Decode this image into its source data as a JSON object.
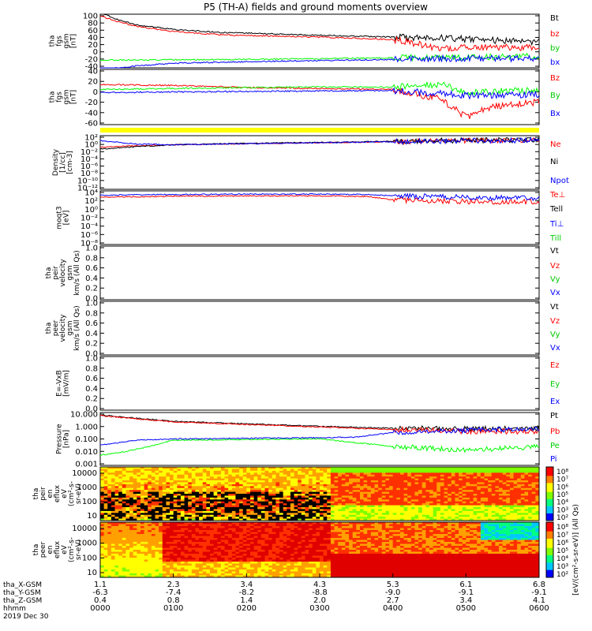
{
  "title": "P5 (TH-A) fields and ground moments overview",
  "colors": {
    "black": "#000000",
    "red": "#ff0000",
    "green": "#00ff00",
    "blue": "#0000ff",
    "yellow": "#ffff00"
  },
  "chart_data": [
    {
      "type": "line",
      "ylabel_lines": [
        "tha",
        "fgs",
        "gsm",
        "[nT]"
      ],
      "ylim": [
        -40,
        100
      ],
      "yticks": [
        "100",
        "80",
        "60",
        "40",
        "20",
        "0",
        "-20",
        "-40"
      ],
      "legend": [
        "Bt",
        "bz",
        "by",
        "bx"
      ],
      "series": [
        {
          "name": "Bt",
          "color": "#000000",
          "x": [
            0,
            5,
            15,
            30,
            60,
            100,
            180,
            240,
            280,
            320,
            360
          ],
          "values": [
            105,
            98,
            85,
            72,
            60,
            52,
            45,
            40,
            38,
            32,
            28
          ]
        },
        {
          "name": "bz",
          "color": "#ff0000",
          "x": [
            0,
            5,
            15,
            30,
            60,
            100,
            180,
            240,
            280,
            320,
            360
          ],
          "values": [
            95,
            90,
            80,
            68,
            55,
            46,
            40,
            34,
            10,
            14,
            12
          ]
        },
        {
          "name": "by",
          "color": "#00ff00",
          "x": [
            0,
            60,
            120,
            180,
            240,
            300,
            360
          ],
          "values": [
            -20,
            -19,
            -18,
            -16,
            -14,
            -12,
            -10
          ]
        },
        {
          "name": "bx",
          "color": "#0000ff",
          "x": [
            0,
            30,
            60,
            120,
            180,
            240,
            300,
            360
          ],
          "values": [
            -45,
            -35,
            -28,
            -24,
            -21,
            -18,
            -15,
            -16
          ]
        }
      ]
    },
    {
      "type": "line",
      "ylabel_lines": [
        "tha",
        "fgs",
        "gsm",
        "[nT]"
      ],
      "ylim": [
        -70,
        40
      ],
      "yticks": [
        "40",
        "20",
        "0",
        "-20",
        "-40",
        "-60"
      ],
      "legend": [
        "Bz",
        "By",
        "Bx"
      ],
      "series": [
        {
          "name": "Bz",
          "color": "#ff0000",
          "x": [
            0,
            60,
            120,
            180,
            240,
            280,
            300,
            320,
            360
          ],
          "values": [
            10,
            8,
            4,
            2,
            0,
            -20,
            -55,
            -35,
            -25
          ]
        },
        {
          "name": "By",
          "color": "#00ff00",
          "x": [
            0,
            60,
            120,
            180,
            240,
            280,
            300,
            360
          ],
          "values": [
            0,
            2,
            4,
            5,
            5,
            10,
            -5,
            -2
          ]
        },
        {
          "name": "Bx",
          "color": "#0000ff",
          "x": [
            0,
            60,
            120,
            180,
            240,
            280,
            300,
            360
          ],
          "values": [
            -6,
            -5,
            -4,
            -3,
            -2,
            -8,
            -12,
            -10
          ]
        }
      ]
    },
    {
      "type": "line",
      "log": true,
      "ylabel_lines": [
        "Density",
        "[1/cc]",
        "[cm-3]"
      ],
      "ylim": [
        -13,
        3
      ],
      "yticks": [
        "10²",
        "10⁰",
        "10⁻²",
        "10⁻⁴",
        "10⁻⁶",
        "10⁻⁸",
        "10⁻¹⁰",
        "10⁻¹²"
      ],
      "legend": [
        "Ne",
        "Ni",
        "Npot"
      ],
      "series": [
        {
          "name": "Ne",
          "color": "#ff0000",
          "x": [
            0,
            30,
            60,
            120,
            180,
            240,
            300,
            360
          ],
          "values": [
            -0.5,
            0,
            0.3,
            0.6,
            0.9,
            1.2,
            1.5,
            1.6
          ]
        },
        {
          "name": "Ni",
          "color": "#000000",
          "x": [
            0,
            30,
            60,
            120,
            180,
            240,
            300,
            360
          ],
          "values": [
            -1,
            -0.3,
            0.3,
            0.7,
            1,
            1.3,
            1.6,
            1.7
          ]
        },
        {
          "name": "Npot",
          "color": "#0000ff",
          "x": [
            0,
            30,
            60,
            120,
            180,
            240,
            300,
            360
          ],
          "values": [
            1.5,
            0.5,
            0.3,
            0.6,
            0.9,
            1.2,
            1.5,
            1.6
          ]
        }
      ]
    },
    {
      "type": "line",
      "log": true,
      "ylabel_lines": [
        "moqt3",
        "[eV]"
      ],
      "ylim": [
        -10,
        5
      ],
      "yticks": [
        "10⁴",
        "10²",
        "10⁰",
        "10⁻²",
        "10⁻⁴",
        "10⁻⁶",
        "10⁻⁸"
      ],
      "legend": [
        "Te⊥",
        "Tell",
        "Ti⊥",
        "Till"
      ],
      "series": [
        {
          "name": "Te⊥",
          "color": "#ff0000",
          "x": [
            0,
            60,
            120,
            180,
            220,
            240,
            280,
            320,
            360
          ],
          "values": [
            3.2,
            3.5,
            3.6,
            3.6,
            3.4,
            2.5,
            2.2,
            2.0,
            2.0
          ]
        },
        {
          "name": "Ti⊥",
          "color": "#0000ff",
          "x": [
            0,
            60,
            120,
            180,
            220,
            240,
            280,
            320,
            360
          ],
          "values": [
            3.8,
            4,
            4.1,
            4.1,
            4,
            3.6,
            3.3,
            3.1,
            3.0
          ]
        }
      ]
    },
    {
      "type": "line",
      "ylabel_lines": [
        "tha",
        "peir",
        "velocity",
        "gsm",
        "km/s (All Qs)"
      ],
      "ylim": [
        0,
        1
      ],
      "yticks": [
        "1.0",
        "0.8",
        "0.6",
        "0.4",
        "0.2",
        "0.0"
      ],
      "legend": [
        "Vt",
        "Vz",
        "Vy",
        "Vx"
      ],
      "series": []
    },
    {
      "type": "line",
      "ylabel_lines": [
        "tha",
        "peer",
        "velocity",
        "gsm",
        "km/s (All Qs)"
      ],
      "ylim": [
        0,
        1
      ],
      "yticks": [
        "1.0",
        "0.8",
        "0.6",
        "0.4",
        "0.2",
        "0.0"
      ],
      "legend": [
        "Vt",
        "Vz",
        "Vy",
        "Vx"
      ],
      "series": []
    },
    {
      "type": "line",
      "ylabel_lines": [
        "E=-VxB",
        "[mV/m]"
      ],
      "ylim": [
        0,
        1
      ],
      "yticks": [
        "1.0",
        "0.8",
        "0.6",
        "0.4",
        "0.2",
        "0.0"
      ],
      "legend": [
        "Ez",
        "Ey",
        "Ex"
      ],
      "series": []
    },
    {
      "type": "line",
      "log": true,
      "ylabel_lines": [
        "Pressure",
        "[nPa]"
      ],
      "ylim": [
        -3,
        1.2
      ],
      "yticks": [
        "10.000",
        "1.000",
        "0.100",
        "0.010",
        "0.001"
      ],
      "legend": [
        "Pt",
        "Pb",
        "Pe",
        "Pi"
      ],
      "series": [
        {
          "name": "Pt",
          "color": "#000000",
          "x": [
            0,
            30,
            60,
            120,
            180,
            240,
            300,
            360
          ],
          "values": [
            1,
            0.75,
            0.5,
            0.3,
            0.1,
            -0.05,
            -0.1,
            -0.1
          ]
        },
        {
          "name": "Pb",
          "color": "#ff0000",
          "x": [
            0,
            30,
            60,
            120,
            180,
            240,
            300,
            360
          ],
          "values": [
            0.95,
            0.7,
            0.45,
            0.25,
            0.05,
            -0.15,
            -0.3,
            -0.3
          ]
        },
        {
          "name": "Pe",
          "color": "#00ff00",
          "x": [
            0,
            20,
            40,
            60,
            120,
            180,
            210,
            240,
            300,
            360
          ],
          "values": [
            -2.2,
            -1.9,
            -1.5,
            -1,
            -0.95,
            -0.9,
            -1.2,
            -1.5,
            -1.8,
            -1.5
          ]
        },
        {
          "name": "Pi",
          "color": "#0000ff",
          "x": [
            0,
            30,
            60,
            120,
            180,
            210,
            240,
            300,
            360
          ],
          "values": [
            -1.4,
            -1,
            -0.9,
            -0.85,
            -0.8,
            -0.75,
            -0.4,
            -0.2,
            -0.1
          ]
        }
      ]
    },
    {
      "type": "heatmap",
      "ylabel_lines": [
        "tha",
        "peir",
        "en",
        "eflux",
        "eV",
        "(cm²-s-",
        "sr-eV)"
      ],
      "yticks": [
        "10000",
        "1000",
        "100",
        "10"
      ],
      "colorbar_ticks": [
        "10⁸",
        "10⁷",
        "10⁶",
        "10⁵",
        "10⁴",
        "10³",
        "10²"
      ]
    },
    {
      "type": "heatmap",
      "ylabel_lines": [
        "tha",
        "peer",
        "en",
        "eflux",
        "eV",
        "(cm²-s-",
        "sr-eV)"
      ],
      "yticks": [
        "10000",
        "1000",
        "100",
        "10"
      ],
      "colorbar_ticks": [
        "10⁸",
        "10⁷",
        "10⁶",
        "10⁵",
        "10⁴",
        "10³",
        "10²"
      ]
    }
  ],
  "colorbar_label": "[eV/(cm²-s-sr-eV)] (All Qs)",
  "xaxis": {
    "row_labels": [
      "tha_X-GSM",
      "tha_Y-GSM",
      "tha_Z-GSM",
      "hhmm",
      "2019 Dec 30"
    ],
    "ticks": [
      {
        "x": "1.1",
        "y": "-6.3",
        "z": "0.4",
        "t": "0000"
      },
      {
        "x": "2.3",
        "y": "-7.4",
        "z": "0.8",
        "t": "0100"
      },
      {
        "x": "3.4",
        "y": "-8.2",
        "z": "1.4",
        "t": "0200"
      },
      {
        "x": "4.3",
        "y": "-8.8",
        "z": "2.0",
        "t": "0300"
      },
      {
        "x": "5.3",
        "y": "-9.0",
        "z": "2.7",
        "t": "0400"
      },
      {
        "x": "6.1",
        "y": "-9.1",
        "z": "3.4",
        "t": "0500"
      },
      {
        "x": "6.8",
        "y": "-9.1",
        "z": "4.1",
        "t": "0600"
      }
    ]
  }
}
